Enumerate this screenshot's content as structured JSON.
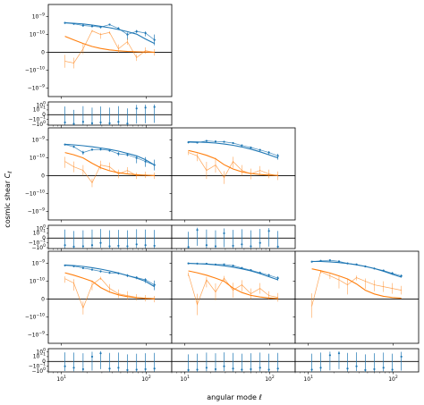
{
  "figure": {
    "ylabel": "cosmic shear $C_\\ell$",
    "xlabel": "angular mode $\\ell$"
  },
  "chart_data": {
    "type": "line",
    "layout": "lower-triangular 3x3 grid of main panels, each with a residual sub-panel",
    "x_scale": "log",
    "xlim": [
      7,
      200
    ],
    "x_ticks": [
      "10^1",
      "10^2"
    ],
    "main_y_scale": "symlog",
    "main_y_ticks": [
      "10^-9",
      "10^-10",
      "0",
      "-10^-10",
      "-10^-9"
    ],
    "residual_y_ticks": [
      "10^0",
      "10^-1",
      "0",
      "-10^-1",
      "-10^0"
    ],
    "colors": {
      "E": "#1f77b4",
      "B": "#ff7f0e"
    },
    "ell": [
      11,
      14,
      18,
      23,
      29,
      37,
      47,
      60,
      77,
      98,
      125
    ],
    "panels": [
      {
        "row": 1,
        "col": 1,
        "E_measured": [
          4.5e-10,
          4e-10,
          3.2e-10,
          2.9e-10,
          2.6e-10,
          3.6e-10,
          2.2e-10,
          1e-10,
          1.5e-10,
          1.2e-10,
          7e-11
        ],
        "E_errors": [
          6e-11,
          5e-11,
          5e-11,
          4e-11,
          4e-11,
          4e-11,
          4e-11,
          3e-11,
          3e-11,
          3e-11,
          3e-11
        ],
        "E_model": [
          4.6e-10,
          4.3e-10,
          3.9e-10,
          3.4e-10,
          2.9e-10,
          2.4e-10,
          1.9e-10,
          1.45e-10,
          1.05e-10,
          7.5e-11,
          5e-11
        ],
        "B_measured": [
          -5e-11,
          -6e-11,
          2e-11,
          1.6e-10,
          1e-10,
          1.3e-10,
          2e-11,
          6e-11,
          -3e-11,
          1e-11,
          0.0
        ],
        "B_model": [
          9e-11,
          7e-11,
          5e-11,
          3.3e-11,
          2.2e-11,
          1.4e-11,
          9e-12,
          5.5e-12,
          3.2e-12,
          1.8e-12,
          1e-12
        ],
        "residuals": [
          -0.4,
          -0.8,
          -0.3,
          -0.6,
          -0.4,
          -0.6,
          -0.3,
          -0.7,
          0.2,
          0.3,
          0.4
        ]
      },
      {
        "row": 2,
        "col": 1,
        "E_measured": [
          5.6e-10,
          4.2e-10,
          2e-10,
          2.9e-10,
          3e-10,
          2.6e-10,
          1.7e-10,
          1.5e-10,
          1e-10,
          8e-11,
          6e-11
        ],
        "E_errors": [
          6e-11,
          5e-11,
          5e-11,
          4e-11,
          4e-11,
          4e-11,
          4e-11,
          3e-11,
          3e-11,
          3e-11,
          3e-11
        ],
        "E_model": [
          5.8e-10,
          5.4e-10,
          4.8e-10,
          4.2e-10,
          3.6e-10,
          3e-10,
          2.4e-10,
          1.8e-10,
          1.3e-10,
          9e-11,
          6e-11
        ],
        "B_measured": [
          8e-11,
          5e-11,
          3e-11,
          -4e-11,
          6e-11,
          5e-11,
          1e-11,
          3e-11,
          0.0,
          5e-12,
          0.0
        ],
        "B_model": [
          2e-10,
          1.5e-10,
          1e-10,
          7e-11,
          4.5e-11,
          2.8e-11,
          1.7e-11,
          1e-11,
          6e-12,
          3e-12,
          1.5e-12
        ],
        "residuals": [
          -0.3,
          -0.6,
          -0.5,
          -0.3,
          -0.1,
          -0.5,
          -0.4,
          -0.5,
          -0.2,
          -0.3,
          -0.4
        ]
      },
      {
        "row": 2,
        "col": 2,
        "E_measured": [
          7.5e-10,
          7.2e-10,
          9e-10,
          8.3e-10,
          8e-10,
          6.8e-10,
          5e-10,
          3.8e-10,
          2.8e-10,
          2e-10,
          1.3e-10
        ],
        "E_errors": [
          9e-11,
          8e-11,
          8e-11,
          7e-11,
          6e-11,
          6e-11,
          5e-11,
          5e-11,
          4e-11,
          4e-11,
          4e-11
        ],
        "E_model": [
          8e-10,
          7.8e-10,
          7.4e-10,
          6.8e-10,
          6e-10,
          5.1e-10,
          4.1e-10,
          3.1e-10,
          2.2e-10,
          1.5e-10,
          1e-10
        ],
        "B_measured": [
          2e-10,
          1.3e-10,
          3e-11,
          6e-11,
          -1e-11,
          8e-11,
          3e-11,
          1e-11,
          3e-11,
          1e-11,
          0.0
        ],
        "B_model": [
          2.6e-10,
          2e-10,
          1.4e-10,
          9.5e-11,
          6.2e-11,
          3.8e-11,
          2.2e-11,
          1.3e-11,
          7e-12,
          4e-12,
          2e-12
        ],
        "residuals": [
          -0.7,
          0.5,
          -0.3,
          -0.5,
          0.1,
          -0.4,
          -0.2,
          -0.5,
          -0.1,
          0.3,
          -0.6
        ]
      },
      {
        "row": 3,
        "col": 1,
        "E_measured": [
          7.8e-10,
          7e-10,
          5.5e-10,
          4.5e-10,
          3.6e-10,
          3e-10,
          2.8e-10,
          2.1e-10,
          1.6e-10,
          1.2e-10,
          8e-11
        ],
        "E_errors": [
          8e-11,
          7e-11,
          6e-11,
          5e-11,
          5e-11,
          4e-11,
          4e-11,
          4e-11,
          3e-11,
          3e-11,
          3e-11
        ],
        "E_model": [
          8.2e-10,
          7.6e-10,
          6.8e-10,
          5.8e-10,
          4.8e-10,
          3.8e-10,
          2.9e-10,
          2.1e-10,
          1.5e-10,
          1e-10,
          7e-11
        ],
        "B_measured": [
          1.4e-10,
          9e-11,
          -5e-11,
          8e-11,
          1.5e-10,
          6e-11,
          3e-11,
          2e-11,
          1e-11,
          5e-12,
          0.0
        ],
        "B_model": [
          3e-10,
          2.2e-10,
          1.5e-10,
          1e-10,
          6.5e-11,
          4e-11,
          2.4e-11,
          1.4e-11,
          8e-12,
          4.5e-12,
          2.5e-12
        ],
        "residuals": [
          -0.1,
          -0.2,
          -0.4,
          0.1,
          0.5,
          -0.3,
          -0.2,
          -0.6,
          -0.5,
          -0.4,
          -0.3
        ]
      },
      {
        "row": 3,
        "col": 2,
        "E_measured": [
          1e-09,
          9.8e-10,
          9.6e-10,
          8.7e-10,
          8.8e-10,
          7.5e-10,
          5.6e-10,
          4.2e-10,
          3e-10,
          2.2e-10,
          1.5e-10
        ],
        "E_errors": [
          1e-10,
          1e-10,
          9e-11,
          8e-11,
          8e-11,
          7e-11,
          6e-11,
          5e-11,
          5e-11,
          4e-11,
          4e-11
        ],
        "E_model": [
          1e-09,
          9.7e-10,
          9.2e-10,
          8.4e-10,
          7.4e-10,
          6.2e-10,
          5e-10,
          3.8e-10,
          2.7e-10,
          1.8e-10,
          1.2e-10
        ],
        "B_measured": [
          2.5e-10,
          -3e-11,
          1.2e-10,
          4e-11,
          1.5e-10,
          5e-11,
          8e-11,
          3e-11,
          6e-11,
          2e-11,
          1e-11
        ],
        "B_model": [
          3.8e-10,
          3e-10,
          2.2e-10,
          1.5e-10,
          1e-10,
          6.2e-11,
          3.7e-11,
          2.1e-11,
          1.2e-11,
          6.5e-12,
          3.5e-12
        ],
        "residuals": [
          -0.6,
          -0.5,
          -0.2,
          -0.4,
          -0.1,
          -0.3,
          -0.5,
          -0.4,
          -0.2,
          -0.5,
          -0.3
        ]
      },
      {
        "row": 3,
        "col": 3,
        "E_measured": [
          1.25e-09,
          1.4e-09,
          1.5e-09,
          1.3e-09,
          1e-09,
          8.8e-10,
          6.8e-10,
          5.2e-10,
          4e-10,
          2.8e-10,
          2e-10
        ],
        "E_errors": [
          1.2e-10,
          1.2e-10,
          1.1e-10,
          1e-10,
          9e-11,
          8e-11,
          7e-11,
          6e-11,
          5e-11,
          5e-11,
          4e-11
        ],
        "E_model": [
          1.3e-09,
          1.28e-09,
          1.22e-09,
          1.12e-09,
          9.9e-10,
          8.4e-10,
          6.8e-10,
          5.2e-10,
          3.7e-10,
          2.5e-10,
          1.7e-10
        ],
        "B_measured": [
          -4e-11,
          3.5e-10,
          2e-10,
          1.2e-10,
          8e-11,
          1.6e-10,
          1e-10,
          8e-11,
          7e-11,
          6e-11,
          5e-11
        ],
        "B_model": [
          5e-10,
          3.9e-10,
          2.9e-10,
          2e-10,
          1.35e-10,
          8.5e-11,
          5e-11,
          2.9e-11,
          1.6e-11,
          9e-12,
          5e-12
        ],
        "residuals": [
          -0.5,
          -0.2,
          0.2,
          0.5,
          -0.3,
          -0.1,
          -0.6,
          -0.4,
          -0.2,
          -0.5,
          0.1
        ]
      }
    ]
  }
}
